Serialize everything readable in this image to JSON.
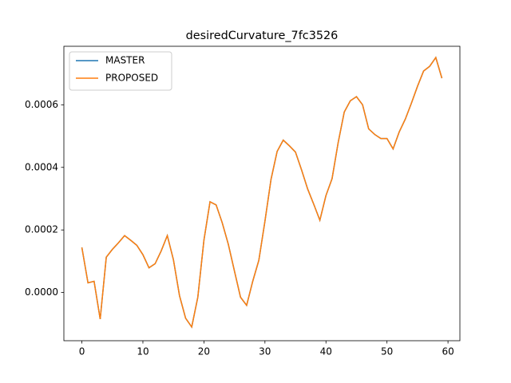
{
  "chart_data": {
    "type": "line",
    "title": "desiredCurvature_7fc3526",
    "x": [
      0,
      1,
      2,
      3,
      4,
      5,
      6,
      7,
      8,
      9,
      10,
      11,
      12,
      13,
      14,
      15,
      16,
      17,
      18,
      19,
      20,
      21,
      22,
      23,
      24,
      25,
      26,
      27,
      28,
      29,
      30,
      31,
      32,
      33,
      34,
      35,
      36,
      37,
      38,
      39,
      40,
      41,
      42,
      43,
      44,
      45,
      46,
      47,
      48,
      49,
      50,
      51,
      52,
      53,
      54,
      55,
      56,
      57,
      58,
      59
    ],
    "series": [
      {
        "name": "MASTER",
        "color": "#1f77b4",
        "values": [
          0.000144,
          3.1e-05,
          3.6e-05,
          -8.5e-05,
          0.000113,
          0.000138,
          0.000159,
          0.000182,
          0.000167,
          0.000151,
          0.000121,
          7.9e-05,
          9.2e-05,
          0.000133,
          0.000182,
          0.000105,
          -1e-05,
          -8.2e-05,
          -0.00011,
          -1.5e-05,
          0.000167,
          0.00029,
          0.00028,
          0.000223,
          0.000154,
          6.9e-05,
          -1.5e-05,
          -4.1e-05,
          3.6e-05,
          0.000103,
          0.000228,
          0.000362,
          0.000451,
          0.000487,
          0.000469,
          0.000449,
          0.000392,
          0.000331,
          0.000282,
          0.000231,
          0.00031,
          0.000364,
          0.000479,
          0.000577,
          0.000613,
          0.000626,
          0.0006,
          0.000523,
          0.000505,
          0.000492,
          0.000492,
          0.000459,
          0.000513,
          0.000554,
          0.000605,
          0.000659,
          0.000708,
          0.000723,
          0.000751,
          0.000685
        ]
      },
      {
        "name": "PROPOSED",
        "color": "#ff7f0e",
        "values": [
          0.000144,
          3.1e-05,
          3.6e-05,
          -8.5e-05,
          0.000113,
          0.000138,
          0.000159,
          0.000182,
          0.000167,
          0.000151,
          0.000121,
          7.9e-05,
          9.2e-05,
          0.000133,
          0.000182,
          0.000105,
          -1e-05,
          -8.2e-05,
          -0.00011,
          -1.5e-05,
          0.000167,
          0.00029,
          0.00028,
          0.000223,
          0.000154,
          6.9e-05,
          -1.5e-05,
          -4.1e-05,
          3.6e-05,
          0.000103,
          0.000228,
          0.000362,
          0.000451,
          0.000487,
          0.000469,
          0.000449,
          0.000392,
          0.000331,
          0.000282,
          0.000231,
          0.00031,
          0.000364,
          0.000479,
          0.000577,
          0.000613,
          0.000626,
          0.0006,
          0.000523,
          0.000505,
          0.000492,
          0.000492,
          0.000459,
          0.000513,
          0.000554,
          0.000605,
          0.000659,
          0.000708,
          0.000723,
          0.000751,
          0.000685
        ]
      }
    ],
    "xlim": [
      -2.95,
      61.95
    ],
    "xticks": [
      0,
      10,
      20,
      30,
      40,
      50,
      60
    ],
    "ylim": [
      -0.000154,
      0.000787
    ],
    "yticks": [
      {
        "value": 0,
        "label": "0.0000"
      },
      {
        "value": 0.0002,
        "label": "0.0002"
      },
      {
        "value": 0.0004,
        "label": "0.0004"
      },
      {
        "value": 0.0006,
        "label": "0.0006"
      }
    ],
    "grid": false,
    "legend": "upper left"
  }
}
